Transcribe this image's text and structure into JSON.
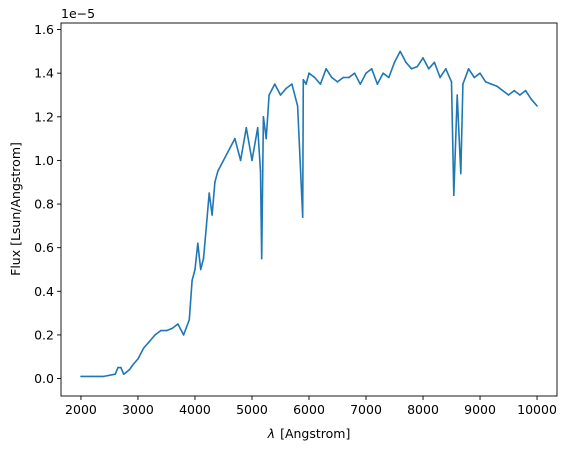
{
  "chart_data": {
    "type": "line",
    "title": "",
    "xlabel": "λ [Angstrom]",
    "xlabel_symbol": "λ",
    "xlabel_unit": "[Angstrom]",
    "ylabel": "Flux [Lsun/Angstrom]",
    "y_offset_label": "1e−5",
    "y_offset_base": "1e",
    "y_offset_exp": "−5",
    "y_scale_factor": 1e-05,
    "xlim": [
      1650,
      10350
    ],
    "ylim": [
      -0.08,
      1.63
    ],
    "x_ticks": [
      2000,
      3000,
      4000,
      5000,
      6000,
      7000,
      8000,
      9000,
      10000
    ],
    "x_tick_labels": [
      "2000",
      "3000",
      "4000",
      "5000",
      "6000",
      "7000",
      "8000",
      "9000",
      "10000"
    ],
    "y_ticks": [
      0.0,
      0.2,
      0.4,
      0.6,
      0.8,
      1.0,
      1.2,
      1.4,
      1.6
    ],
    "y_tick_labels": [
      "0.0",
      "0.2",
      "0.4",
      "0.6",
      "0.8",
      "1.0",
      "1.2",
      "1.4",
      "1.6"
    ],
    "grid": false,
    "legend": "none",
    "series": [
      {
        "color": "#1f77b4",
        "x": [
          2000,
          2200,
          2400,
          2600,
          2650,
          2700,
          2750,
          2800,
          2850,
          2900,
          3000,
          3100,
          3200,
          3300,
          3400,
          3500,
          3600,
          3700,
          3800,
          3900,
          3950,
          4000,
          4050,
          4100,
          4150,
          4200,
          4250,
          4300,
          4350,
          4400,
          4500,
          4600,
          4700,
          4800,
          4900,
          5000,
          5100,
          5150,
          5170,
          5200,
          5250,
          5300,
          5400,
          5500,
          5600,
          5700,
          5800,
          5890,
          5900,
          5950,
          6000,
          6100,
          6200,
          6300,
          6400,
          6500,
          6600,
          6700,
          6800,
          6900,
          7000,
          7100,
          7200,
          7300,
          7400,
          7500,
          7600,
          7700,
          7800,
          7900,
          8000,
          8100,
          8200,
          8300,
          8400,
          8500,
          8540,
          8600,
          8662,
          8700,
          8800,
          8900,
          9000,
          9100,
          9200,
          9300,
          9400,
          9500,
          9600,
          9700,
          9800,
          9900,
          10000
        ],
        "y": [
          0.01,
          0.01,
          0.01,
          0.02,
          0.05,
          0.05,
          0.02,
          0.03,
          0.04,
          0.06,
          0.09,
          0.14,
          0.17,
          0.2,
          0.22,
          0.22,
          0.23,
          0.25,
          0.2,
          0.27,
          0.45,
          0.5,
          0.62,
          0.5,
          0.55,
          0.7,
          0.85,
          0.75,
          0.9,
          0.95,
          1.0,
          1.05,
          1.1,
          1.0,
          1.15,
          1.0,
          1.15,
          0.95,
          0.55,
          1.2,
          1.1,
          1.3,
          1.35,
          1.3,
          1.33,
          1.35,
          1.25,
          0.74,
          1.37,
          1.35,
          1.4,
          1.38,
          1.35,
          1.42,
          1.38,
          1.36,
          1.38,
          1.38,
          1.4,
          1.35,
          1.4,
          1.42,
          1.35,
          1.4,
          1.38,
          1.45,
          1.5,
          1.45,
          1.42,
          1.43,
          1.47,
          1.42,
          1.45,
          1.38,
          1.42,
          1.36,
          0.84,
          1.3,
          0.94,
          1.35,
          1.42,
          1.38,
          1.4,
          1.36,
          1.35,
          1.34,
          1.32,
          1.3,
          1.32,
          1.3,
          1.32,
          1.28,
          1.25
        ]
      }
    ]
  }
}
